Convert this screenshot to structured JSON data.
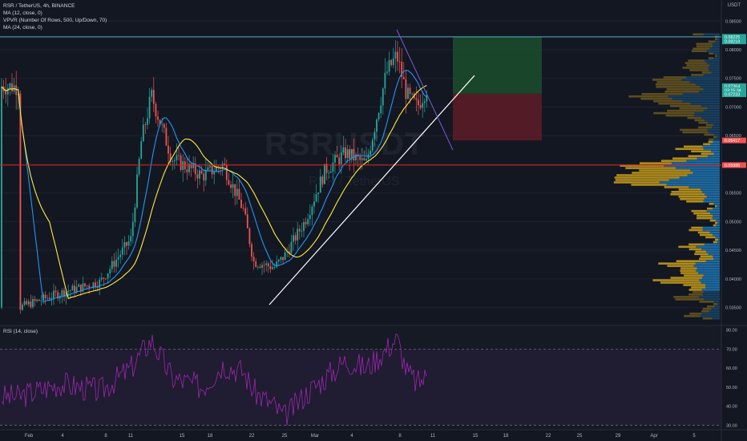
{
  "header": {
    "symbol_line": "RSR / TetherUS, 4h, BINANCE",
    "indicators": [
      "MA (12, close, 0)",
      "VPVR (Number Of Rows, 500, Up/Down, 70)",
      "MA (24, close, 0)"
    ],
    "quote_currency": "USDT",
    "rsi_label": "RSI (14, close)"
  },
  "watermark": {
    "main": "RSRUSDT",
    "sub": "RSR / TetherUS"
  },
  "colors": {
    "background": "#131722",
    "up_candle": "#26a69a",
    "down_candle": "#ef5350",
    "ma12": "#2196f3",
    "ma24": "#ffeb3b",
    "trendline": "#ffffff",
    "resistance_line": "#e91e1e",
    "top_line": "#5ec9d8",
    "rsi_line": "#9c27b0",
    "vpvr_up": "#1e6fa8",
    "vpvr_down": "#b8921c",
    "profit_zone": "#1b4a2b",
    "loss_zone": "#5a1c27"
  },
  "price_axis": {
    "ticks": [
      "0.08500",
      "0.08000",
      "0.07500",
      "0.07000",
      "0.06500",
      "0.06000",
      "0.05500",
      "0.05000",
      "0.04500",
      "0.04000",
      "0.03500"
    ],
    "markers": [
      {
        "label": "0.08225",
        "color": "#26a69a"
      },
      {
        "label": "0.08218",
        "color": "#26a69a"
      },
      {
        "label": "0.07364",
        "color": "#26a69a"
      },
      {
        "label": "03:15:34",
        "color": "#26a69a"
      },
      {
        "label": "0.07233",
        "color": "#26a69a"
      },
      {
        "label": "0.06417",
        "color": "#ef5350"
      },
      {
        "label": "0.05986",
        "color": "#ef5350"
      }
    ]
  },
  "rsi_axis": {
    "ticks": [
      "80.00",
      "70.00",
      "60.00",
      "50.00",
      "40.00",
      "30.00"
    ]
  },
  "time_axis": {
    "ticks": [
      "Feb",
      "4",
      "8",
      "11",
      "15",
      "18",
      "22",
      "25",
      "Mar",
      "4",
      "8",
      "11",
      "15",
      "18",
      "22",
      "25",
      "29",
      "Apr",
      "5"
    ]
  },
  "chart_data": {
    "type": "candlestick",
    "title": "RSR / TetherUS, 4h, BINANCE",
    "ylim": [
      0.032,
      0.087
    ],
    "rsi_ylim": [
      28,
      82
    ],
    "key_levels": {
      "resistance": 0.05986,
      "top": 0.08225,
      "entry": 0.07233,
      "stop": 0.06417,
      "last": 0.07364
    },
    "close_path": {
      "dates": [
        "Jan 31",
        "Feb 4",
        "Feb 8",
        "Feb 11",
        "Feb 12",
        "Feb 13",
        "Feb 15",
        "Feb 18",
        "Feb 20",
        "Feb 22",
        "Feb 23",
        "Feb 25",
        "Feb 26",
        "Feb 28",
        "Mar 2",
        "Mar 4",
        "Mar 6",
        "Mar 8",
        "Mar 9",
        "Mar 10",
        "Mar 11",
        "Mar 12"
      ],
      "values": [
        0.035,
        0.0375,
        0.0395,
        0.047,
        0.064,
        0.072,
        0.061,
        0.058,
        0.06,
        0.052,
        0.043,
        0.042,
        0.044,
        0.05,
        0.059,
        0.062,
        0.06,
        0.076,
        0.079,
        0.072,
        0.07,
        0.0736
      ]
    },
    "rsi_path": [
      45,
      52,
      48,
      60,
      68,
      75,
      55,
      50,
      62,
      58,
      48,
      40,
      34,
      46,
      55,
      64,
      60,
      70,
      76,
      58,
      52,
      56
    ]
  }
}
